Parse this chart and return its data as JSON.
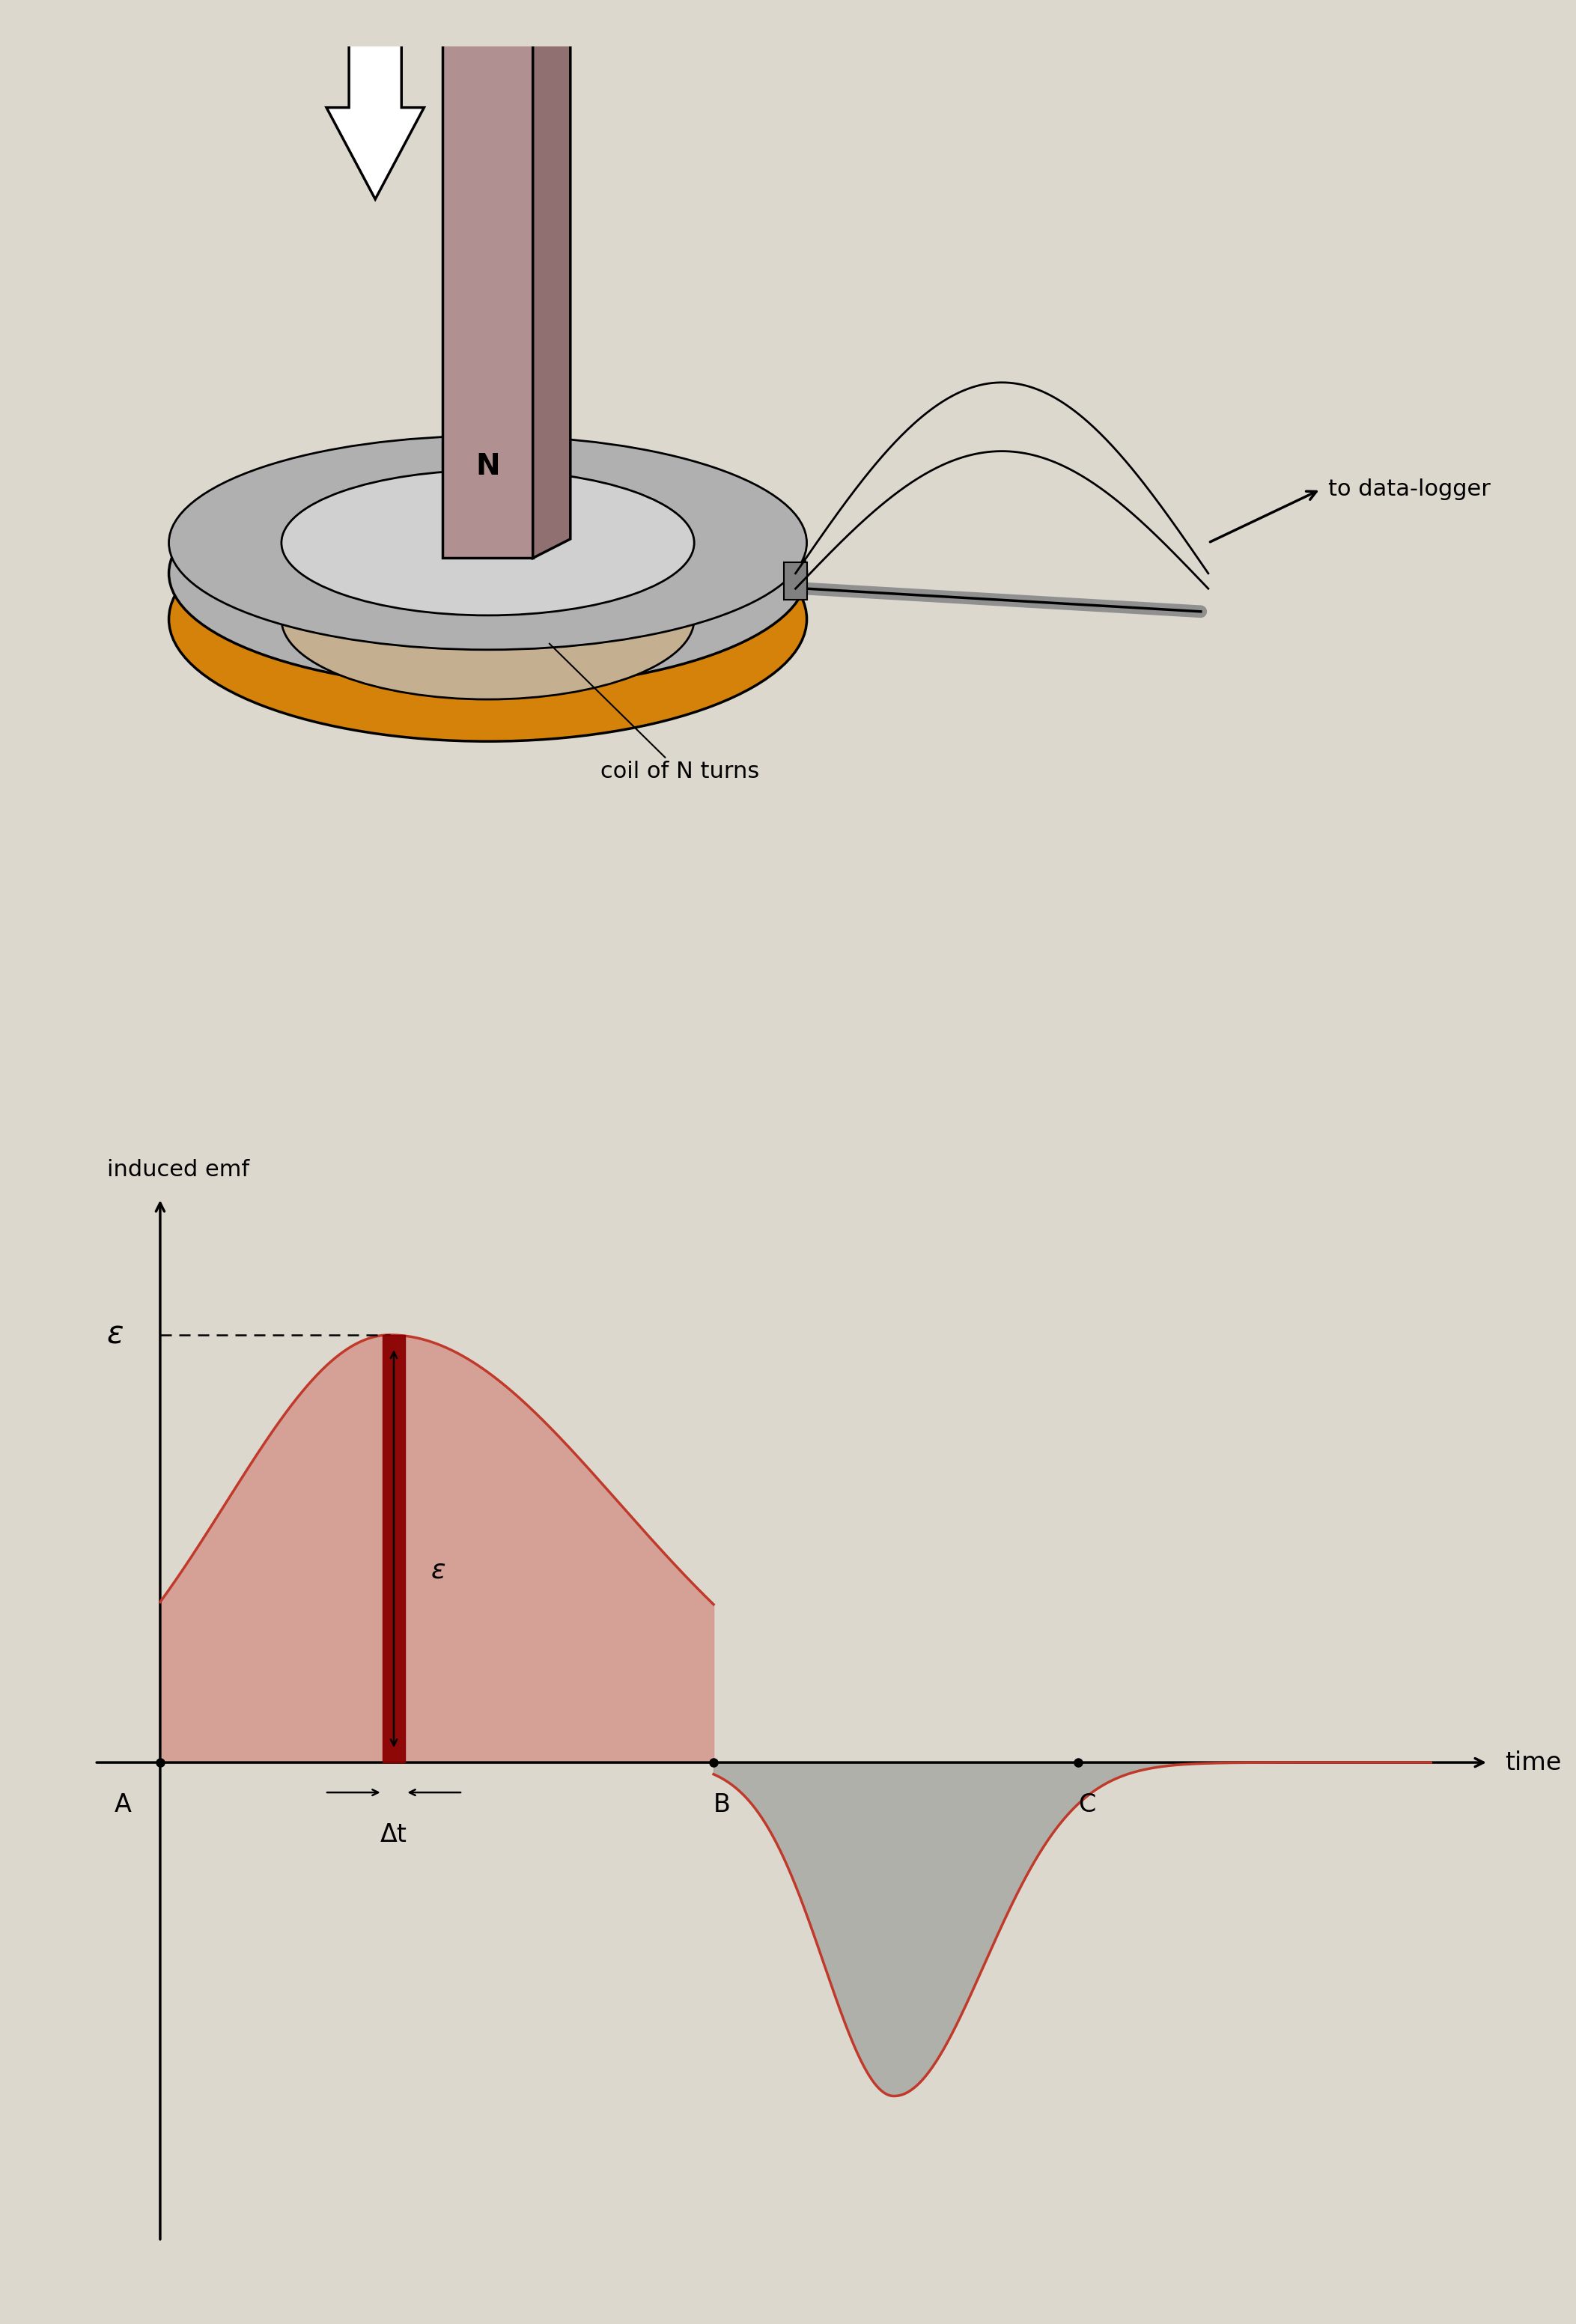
{
  "bg_color": "#ddd8ce",
  "curve_color": "#c0392b",
  "fill_positive_color": "#d4948a",
  "fill_negative_color": "#9aA09a",
  "epsilon_label": "ε",
  "xlabel": "time",
  "ylabel": "induced emf",
  "A_label": "A",
  "B_label": "B",
  "C_label": "C",
  "delta_t_label": "Δt",
  "magnet_front_color": "#b09090",
  "magnet_right_color": "#907070",
  "magnet_top_color": "#c8a8a8",
  "coil_orange_color": "#d4820a",
  "coil_gray_color": "#b0b0b0",
  "coil_light_gray": "#d0d0d0",
  "data_logger_label": "to data-logger",
  "coil_label": "coil of N turns",
  "rod_color": "#909090"
}
